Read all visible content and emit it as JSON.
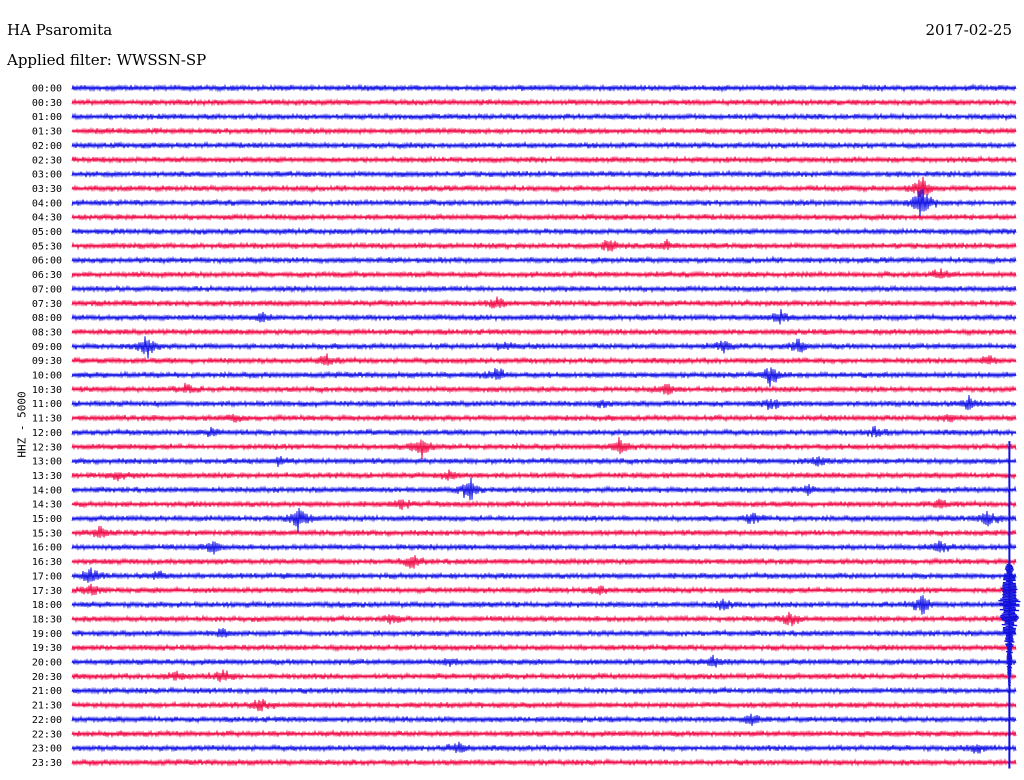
{
  "header": {
    "station": "HA Psaromita",
    "date": "2017-02-25",
    "filter_label": "Applied filter: WWSSN-SP",
    "channel_label": "HHZ - 5000"
  },
  "colors": {
    "blue": "#1a1ae6",
    "red": "#f0134e",
    "event": "#1010dd"
  },
  "chart_data": {
    "type": "line",
    "title": "",
    "ylabel": "HHZ - 5000",
    "row_interval_minutes": 30,
    "row_labels": [
      "00:00",
      "00:30",
      "01:00",
      "01:30",
      "02:00",
      "02:30",
      "03:00",
      "03:30",
      "04:00",
      "04:30",
      "05:00",
      "05:30",
      "06:00",
      "06:30",
      "07:00",
      "07:30",
      "08:00",
      "08:30",
      "09:00",
      "09:30",
      "10:00",
      "10:30",
      "11:00",
      "11:30",
      "12:00",
      "12:30",
      "13:00",
      "13:30",
      "14:00",
      "14:30",
      "15:00",
      "15:30",
      "16:00",
      "16:30",
      "17:00",
      "17:30",
      "18:00",
      "18:30",
      "19:00",
      "19:30",
      "20:00",
      "20:30",
      "21:00",
      "21:30",
      "22:00",
      "22:30",
      "23:00",
      "23:30"
    ],
    "series_color_pattern": [
      "blue",
      "red"
    ],
    "bursts": [
      {
        "row": 7,
        "x": 0.9,
        "amp": 14
      },
      {
        "row": 8,
        "x": 0.9,
        "amp": 20
      },
      {
        "row": 11,
        "x": 0.57,
        "amp": 8
      },
      {
        "row": 11,
        "x": 0.63,
        "amp": 5
      },
      {
        "row": 13,
        "x": 0.92,
        "amp": 6
      },
      {
        "row": 15,
        "x": 0.45,
        "amp": 8
      },
      {
        "row": 16,
        "x": 0.2,
        "amp": 6
      },
      {
        "row": 16,
        "x": 0.75,
        "amp": 8
      },
      {
        "row": 18,
        "x": 0.08,
        "amp": 14
      },
      {
        "row": 18,
        "x": 0.46,
        "amp": 6
      },
      {
        "row": 18,
        "x": 0.69,
        "amp": 6
      },
      {
        "row": 18,
        "x": 0.77,
        "amp": 8
      },
      {
        "row": 19,
        "x": 0.27,
        "amp": 7
      },
      {
        "row": 19,
        "x": 0.97,
        "amp": 6
      },
      {
        "row": 20,
        "x": 0.45,
        "amp": 8
      },
      {
        "row": 20,
        "x": 0.74,
        "amp": 12
      },
      {
        "row": 21,
        "x": 0.12,
        "amp": 6
      },
      {
        "row": 21,
        "x": 0.63,
        "amp": 7
      },
      {
        "row": 22,
        "x": 0.56,
        "amp": 5
      },
      {
        "row": 22,
        "x": 0.74,
        "amp": 7
      },
      {
        "row": 22,
        "x": 0.95,
        "amp": 7
      },
      {
        "row": 23,
        "x": 0.17,
        "amp": 4
      },
      {
        "row": 23,
        "x": 0.93,
        "amp": 5
      },
      {
        "row": 24,
        "x": 0.15,
        "amp": 5
      },
      {
        "row": 24,
        "x": 0.85,
        "amp": 6
      },
      {
        "row": 25,
        "x": 0.37,
        "amp": 12
      },
      {
        "row": 25,
        "x": 0.58,
        "amp": 8
      },
      {
        "row": 26,
        "x": 0.22,
        "amp": 5
      },
      {
        "row": 26,
        "x": 0.79,
        "amp": 5
      },
      {
        "row": 27,
        "x": 0.05,
        "amp": 5
      },
      {
        "row": 27,
        "x": 0.4,
        "amp": 5
      },
      {
        "row": 28,
        "x": 0.42,
        "amp": 14
      },
      {
        "row": 28,
        "x": 0.78,
        "amp": 5
      },
      {
        "row": 29,
        "x": 0.35,
        "amp": 6
      },
      {
        "row": 29,
        "x": 0.92,
        "amp": 5
      },
      {
        "row": 30,
        "x": 0.24,
        "amp": 14
      },
      {
        "row": 30,
        "x": 0.72,
        "amp": 7
      },
      {
        "row": 30,
        "x": 0.97,
        "amp": 10
      },
      {
        "row": 31,
        "x": 0.03,
        "amp": 6
      },
      {
        "row": 32,
        "x": 0.15,
        "amp": 7
      },
      {
        "row": 32,
        "x": 0.92,
        "amp": 8
      },
      {
        "row": 33,
        "x": 0.36,
        "amp": 8
      },
      {
        "row": 34,
        "x": 0.02,
        "amp": 10
      },
      {
        "row": 34,
        "x": 0.09,
        "amp": 6
      },
      {
        "row": 35,
        "x": 0.02,
        "amp": 7
      },
      {
        "row": 35,
        "x": 0.56,
        "amp": 5
      },
      {
        "row": 36,
        "x": 0.69,
        "amp": 6
      },
      {
        "row": 36,
        "x": 0.9,
        "amp": 12
      },
      {
        "row": 37,
        "x": 0.34,
        "amp": 5
      },
      {
        "row": 37,
        "x": 0.76,
        "amp": 8
      },
      {
        "row": 38,
        "x": 0.16,
        "amp": 5
      },
      {
        "row": 40,
        "x": 0.4,
        "amp": 4
      },
      {
        "row": 40,
        "x": 0.68,
        "amp": 7
      },
      {
        "row": 41,
        "x": 0.16,
        "amp": 8
      },
      {
        "row": 41,
        "x": 0.11,
        "amp": 5
      },
      {
        "row": 43,
        "x": 0.2,
        "amp": 7
      },
      {
        "row": 44,
        "x": 0.72,
        "amp": 6
      },
      {
        "row": 46,
        "x": 0.41,
        "amp": 8
      },
      {
        "row": 46,
        "x": 0.96,
        "amp": 6
      }
    ],
    "quake": {
      "x": 0.993,
      "start_row": 26,
      "end_row": 47,
      "amp": 26,
      "peak_row": 36
    }
  }
}
